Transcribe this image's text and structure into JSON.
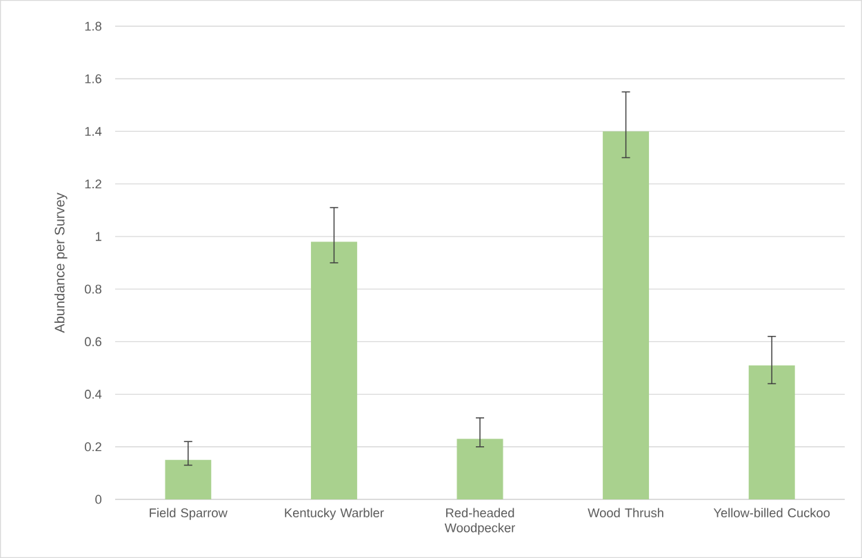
{
  "chart_data": {
    "type": "bar",
    "ylabel": "Abundance per Survey",
    "categories": [
      "Field Sparrow",
      "Kentucky Warbler",
      "Red-headed Woodpecker",
      "Wood Thrush",
      "Yellow-billed Cuckoo"
    ],
    "values": [
      0.15,
      0.98,
      0.23,
      1.4,
      0.51
    ],
    "errors": [
      [
        0.13,
        0.22
      ],
      [
        0.9,
        1.11
      ],
      [
        0.2,
        0.31
      ],
      [
        1.3,
        1.55
      ],
      [
        0.44,
        0.62
      ]
    ],
    "color": "#a9d18e",
    "ylim": [
      0,
      1.8
    ],
    "yticks": [
      0,
      0.2,
      0.4,
      0.6,
      0.8,
      1,
      1.2,
      1.4,
      1.6,
      1.8
    ],
    "grid": "y"
  }
}
